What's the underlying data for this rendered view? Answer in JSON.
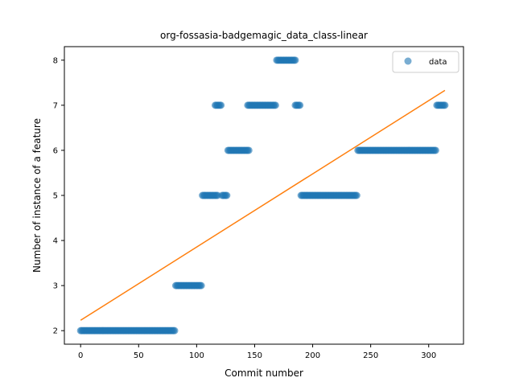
{
  "chart_data": {
    "type": "scatter",
    "title": "org-fossasia-badgemagic_data_class-linear",
    "xlabel": "Commit number",
    "ylabel": "Number of instance of a feature",
    "xlim": [
      -14,
      330
    ],
    "ylim": [
      1.7,
      8.3
    ],
    "xticks": [
      0,
      50,
      100,
      150,
      200,
      250,
      300
    ],
    "yticks": [
      2,
      3,
      4,
      5,
      6,
      7,
      8
    ],
    "grid": false,
    "legend": {
      "position": "top-right",
      "entries": [
        "data"
      ]
    },
    "series": [
      {
        "name": "data",
        "kind": "scatter",
        "color": "#1f77b4",
        "segments": [
          {
            "x_start": 0,
            "x_end": 81,
            "y": 2
          },
          {
            "x_start": 82,
            "x_end": 104,
            "y": 3
          },
          {
            "x_start": 105,
            "x_end": 118,
            "y": 5
          },
          {
            "x_start": 116,
            "x_end": 121,
            "y": 7
          },
          {
            "x_start": 122,
            "x_end": 126,
            "y": 5
          },
          {
            "x_start": 127,
            "x_end": 145,
            "y": 6
          },
          {
            "x_start": 144,
            "x_end": 168,
            "y": 7
          },
          {
            "x_start": 169,
            "x_end": 185,
            "y": 8
          },
          {
            "x_start": 185,
            "x_end": 189,
            "y": 7
          },
          {
            "x_start": 190,
            "x_end": 238,
            "y": 5
          },
          {
            "x_start": 239,
            "x_end": 306,
            "y": 6
          },
          {
            "x_start": 307,
            "x_end": 314,
            "y": 7
          }
        ]
      },
      {
        "name": "",
        "kind": "line",
        "color": "#ff7f0e",
        "x": [
          0,
          314
        ],
        "y": [
          2.23,
          7.33
        ]
      }
    ]
  }
}
